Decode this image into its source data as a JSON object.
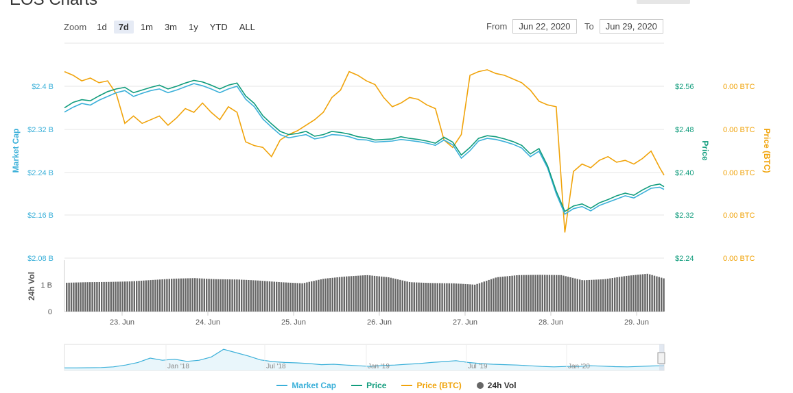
{
  "page": {
    "title": "EOS Charts"
  },
  "toolbar": {
    "zoom_label": "Zoom",
    "zoom_options": [
      "1d",
      "7d",
      "1m",
      "3m",
      "1y",
      "YTD",
      "ALL"
    ],
    "active_zoom": "7d",
    "from_label": "From",
    "from_value": "Jun 22, 2020",
    "to_label": "To",
    "to_value": "Jun 29, 2020"
  },
  "colors": {
    "market_cap": "#3bb0d9",
    "price": "#109c7c",
    "price_btc": "#f0a30a",
    "volume": "#666666"
  },
  "chart_data": {
    "type": "line",
    "x_ticks": [
      "23. Jun",
      "24. Jun",
      "25. Jun",
      "26. Jun",
      "27. Jun",
      "28. Jun",
      "29. Jun"
    ],
    "axes": {
      "market_cap": {
        "label": "Market Cap",
        "ticks": [
          "$2.4 B",
          "$2.32 B",
          "$2.24 B",
          "$2.16 B",
          "$2.08 B"
        ],
        "range": [
          2.08,
          2.4
        ]
      },
      "price": {
        "label": "Price",
        "ticks": [
          "$2.56",
          "$2.48",
          "$2.40",
          "$2.32",
          "$2.24"
        ],
        "range": [
          2.24,
          2.56
        ]
      },
      "price_btc": {
        "label": "Price (BTC)",
        "ticks": [
          "0.00 BTC",
          "0.00 BTC",
          "0.00 BTC",
          "0.00 BTC",
          "0.00 BTC"
        ]
      },
      "volume": {
        "label": "24h Vol",
        "ticks": [
          "1 B",
          "0"
        ]
      }
    },
    "series": [
      {
        "name": "Market Cap",
        "axis": "market_cap",
        "x": [
          0,
          0.1,
          0.2,
          0.3,
          0.4,
          0.5,
          0.6,
          0.7,
          0.8,
          0.9,
          1.0,
          1.1,
          1.2,
          1.3,
          1.4,
          1.5,
          1.6,
          1.7,
          1.8,
          1.9,
          2.0,
          2.1,
          2.2,
          2.3,
          2.4,
          2.5,
          2.6,
          2.7,
          2.8,
          2.9,
          3.0,
          3.1,
          3.2,
          3.3,
          3.4,
          3.5,
          3.6,
          3.7,
          3.8,
          3.9,
          4.0,
          4.1,
          4.2,
          4.3,
          4.4,
          4.5,
          4.6,
          4.7,
          4.8,
          4.9,
          5.0,
          5.1,
          5.2,
          5.3,
          5.4,
          5.5,
          5.6,
          5.7,
          5.8,
          5.9,
          6.0,
          6.1,
          6.2,
          6.3,
          6.4,
          6.5,
          6.6,
          6.7,
          6.8,
          6.9,
          6.95
        ],
        "values": [
          2.352,
          2.361,
          2.368,
          2.365,
          2.374,
          2.381,
          2.388,
          2.392,
          2.381,
          2.387,
          2.392,
          2.395,
          2.388,
          2.393,
          2.399,
          2.405,
          2.401,
          2.395,
          2.388,
          2.395,
          2.4,
          2.376,
          2.362,
          2.339,
          2.324,
          2.31,
          2.304,
          2.307,
          2.31,
          2.302,
          2.305,
          2.31,
          2.309,
          2.306,
          2.301,
          2.3,
          2.296,
          2.297,
          2.298,
          2.301,
          2.299,
          2.297,
          2.294,
          2.29,
          2.3,
          2.291,
          2.266,
          2.28,
          2.298,
          2.303,
          2.301,
          2.297,
          2.292,
          2.285,
          2.269,
          2.279,
          2.248,
          2.2,
          2.162,
          2.172,
          2.176,
          2.168,
          2.178,
          2.184,
          2.19,
          2.196,
          2.192,
          2.201,
          2.21,
          2.212,
          2.208
        ]
      },
      {
        "name": "Price",
        "axis": "price",
        "x": [
          0,
          0.1,
          0.2,
          0.3,
          0.4,
          0.5,
          0.6,
          0.7,
          0.8,
          0.9,
          1.0,
          1.1,
          1.2,
          1.3,
          1.4,
          1.5,
          1.6,
          1.7,
          1.8,
          1.9,
          2.0,
          2.1,
          2.2,
          2.3,
          2.4,
          2.5,
          2.6,
          2.7,
          2.8,
          2.9,
          3.0,
          3.1,
          3.2,
          3.3,
          3.4,
          3.5,
          3.6,
          3.7,
          3.8,
          3.9,
          4.0,
          4.1,
          4.2,
          4.3,
          4.4,
          4.5,
          4.6,
          4.7,
          4.8,
          4.9,
          5.0,
          5.1,
          5.2,
          5.3,
          5.4,
          5.5,
          5.6,
          5.7,
          5.8,
          5.9,
          6.0,
          6.1,
          6.2,
          6.3,
          6.4,
          6.5,
          6.6,
          6.7,
          6.8,
          6.9,
          6.95
        ],
        "values": [
          2.52,
          2.53,
          2.535,
          2.533,
          2.542,
          2.55,
          2.555,
          2.558,
          2.548,
          2.553,
          2.558,
          2.562,
          2.555,
          2.56,
          2.566,
          2.571,
          2.568,
          2.562,
          2.555,
          2.562,
          2.566,
          2.542,
          2.528,
          2.505,
          2.49,
          2.476,
          2.47,
          2.472,
          2.476,
          2.467,
          2.47,
          2.476,
          2.474,
          2.471,
          2.466,
          2.464,
          2.46,
          2.461,
          2.462,
          2.466,
          2.463,
          2.461,
          2.458,
          2.454,
          2.465,
          2.456,
          2.432,
          2.446,
          2.463,
          2.468,
          2.466,
          2.462,
          2.457,
          2.45,
          2.434,
          2.444,
          2.412,
          2.365,
          2.327,
          2.337,
          2.341,
          2.333,
          2.343,
          2.349,
          2.356,
          2.361,
          2.357,
          2.367,
          2.375,
          2.378,
          2.373
        ]
      },
      {
        "name": "Price (BTC)",
        "axis": "price_btc",
        "x": [
          0,
          0.1,
          0.2,
          0.3,
          0.4,
          0.5,
          0.6,
          0.7,
          0.8,
          0.9,
          1.0,
          1.1,
          1.2,
          1.3,
          1.4,
          1.5,
          1.6,
          1.7,
          1.8,
          1.9,
          2.0,
          2.1,
          2.2,
          2.3,
          2.4,
          2.5,
          2.6,
          2.7,
          2.8,
          2.9,
          3.0,
          3.1,
          3.2,
          3.3,
          3.4,
          3.5,
          3.6,
          3.7,
          3.8,
          3.9,
          4.0,
          4.1,
          4.2,
          4.3,
          4.4,
          4.5,
          4.6,
          4.7,
          4.8,
          4.9,
          5.0,
          5.1,
          5.2,
          5.3,
          5.4,
          5.5,
          5.6,
          5.7,
          5.8,
          5.9,
          6.0,
          6.1,
          6.2,
          6.3,
          6.4,
          6.5,
          6.6,
          6.7,
          6.8,
          6.9,
          6.95
        ],
        "values": [
          0.92,
          0.9,
          0.87,
          0.885,
          0.86,
          0.87,
          0.8,
          0.64,
          0.68,
          0.64,
          0.66,
          0.68,
          0.63,
          0.67,
          0.72,
          0.7,
          0.75,
          0.7,
          0.66,
          0.73,
          0.7,
          0.54,
          0.52,
          0.51,
          0.46,
          0.55,
          0.58,
          0.6,
          0.63,
          0.66,
          0.7,
          0.78,
          0.82,
          0.92,
          0.9,
          0.87,
          0.85,
          0.78,
          0.73,
          0.75,
          0.78,
          0.77,
          0.74,
          0.72,
          0.55,
          0.51,
          0.58,
          0.9,
          0.92,
          0.93,
          0.91,
          0.9,
          0.88,
          0.86,
          0.82,
          0.76,
          0.74,
          0.73,
          0.05,
          0.38,
          0.42,
          0.4,
          0.44,
          0.46,
          0.43,
          0.44,
          0.42,
          0.45,
          0.49,
          0.4,
          0.36
        ]
      },
      {
        "name": "24h Vol",
        "axis": "volume",
        "type": "bar",
        "x": [
          0,
          0.25,
          0.5,
          0.75,
          1.0,
          1.25,
          1.5,
          1.75,
          2.0,
          2.25,
          2.5,
          2.75,
          3.0,
          3.25,
          3.5,
          3.75,
          4.0,
          4.25,
          4.5,
          4.75,
          5.0,
          5.25,
          5.5,
          5.75,
          6.0,
          6.25,
          6.5,
          6.75,
          6.95
        ],
        "values": [
          1.05,
          1.07,
          1.08,
          1.1,
          1.15,
          1.2,
          1.22,
          1.18,
          1.17,
          1.13,
          1.07,
          1.03,
          1.2,
          1.28,
          1.33,
          1.25,
          1.07,
          1.04,
          1.03,
          0.98,
          1.25,
          1.33,
          1.34,
          1.33,
          1.14,
          1.18,
          1.3,
          1.38,
          1.2
        ]
      }
    ]
  },
  "navigator": {
    "ticks": [
      "Jan '18",
      "Jul '18",
      "Jan '19",
      "Jul '19",
      "Jan '20"
    ],
    "values": [
      0.05,
      0.05,
      0.06,
      0.07,
      0.1,
      0.18,
      0.3,
      0.5,
      0.4,
      0.45,
      0.35,
      0.4,
      0.55,
      0.9,
      0.75,
      0.6,
      0.42,
      0.34,
      0.3,
      0.28,
      0.25,
      0.2,
      0.22,
      0.18,
      0.15,
      0.12,
      0.16,
      0.18,
      0.22,
      0.25,
      0.3,
      0.34,
      0.38,
      0.3,
      0.25,
      0.22,
      0.2,
      0.18,
      0.15,
      0.12,
      0.1,
      0.12,
      0.12,
      0.15,
      0.13,
      0.11,
      0.1,
      0.12,
      0.14,
      0.15
    ]
  },
  "legend": {
    "market_cap": "Market Cap",
    "price": "Price",
    "price_btc": "Price (BTC)",
    "volume": "24h Vol"
  }
}
